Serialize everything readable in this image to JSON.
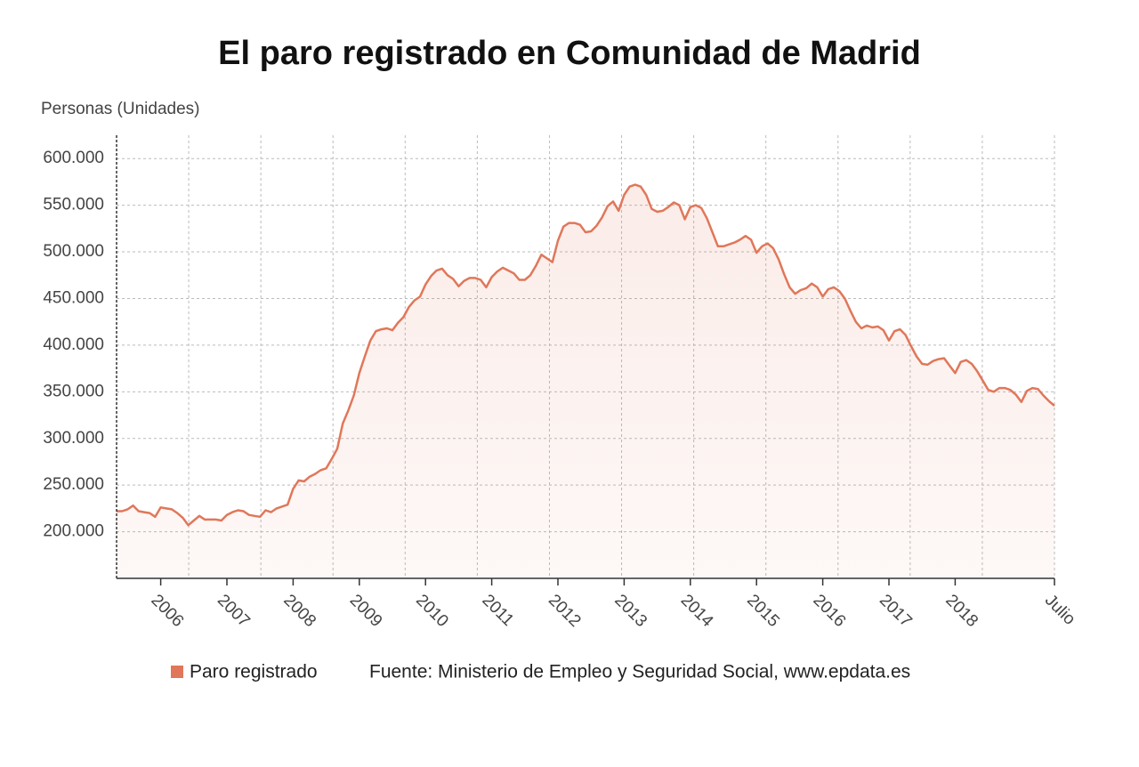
{
  "chart_data": {
    "type": "area-line",
    "title": "El paro registrado en Comunidad de Madrid",
    "y_label": "Personas (Unidades)",
    "source": "Fuente: Ministerio de Empleo y Seguridad Social, www.epdata.es",
    "categories": [
      null,
      null,
      null,
      null,
      null,
      null,
      null,
      null,
      "2006",
      null,
      null,
      null,
      null,
      null,
      null,
      null,
      null,
      null,
      null,
      null,
      "2007",
      null,
      null,
      null,
      null,
      null,
      null,
      null,
      null,
      null,
      null,
      null,
      "2008",
      null,
      null,
      null,
      null,
      null,
      null,
      null,
      null,
      null,
      null,
      null,
      "2009",
      null,
      null,
      null,
      null,
      null,
      null,
      null,
      null,
      null,
      null,
      null,
      "2010",
      null,
      null,
      null,
      null,
      null,
      null,
      null,
      null,
      null,
      null,
      null,
      "2011",
      null,
      null,
      null,
      null,
      null,
      null,
      null,
      null,
      null,
      null,
      null,
      "2012",
      null,
      null,
      null,
      null,
      null,
      null,
      null,
      null,
      null,
      null,
      null,
      "2013",
      null,
      null,
      null,
      null,
      null,
      null,
      null,
      null,
      null,
      null,
      null,
      "2014",
      null,
      null,
      null,
      null,
      null,
      null,
      null,
      null,
      null,
      null,
      null,
      "2015",
      null,
      null,
      null,
      null,
      null,
      null,
      null,
      null,
      null,
      null,
      null,
      "2016",
      null,
      null,
      null,
      null,
      null,
      null,
      null,
      null,
      null,
      null,
      null,
      "2017",
      null,
      null,
      null,
      null,
      null,
      null,
      null,
      null,
      null,
      null,
      null,
      "2018",
      null,
      null,
      null,
      null,
      null,
      null,
      null,
      null,
      null,
      null,
      null,
      null,
      null,
      null,
      null,
      null,
      null,
      "Julio"
    ],
    "series": [
      {
        "name": "Paro registrado",
        "color": "#e0775a",
        "values": [
          222000,
          222000,
          224000,
          228000,
          222000,
          221000,
          220000,
          216000,
          226000,
          225000,
          224000,
          220000,
          215000,
          207000,
          212000,
          217000,
          213000,
          213000,
          213000,
          212000,
          218000,
          221000,
          223000,
          222000,
          218000,
          217000,
          216000,
          223000,
          221000,
          225000,
          227000,
          229000,
          246000,
          255000,
          254000,
          259000,
          262000,
          266000,
          268000,
          278000,
          289000,
          316000,
          330000,
          346000,
          370000,
          388000,
          405000,
          415000,
          417000,
          418000,
          416000,
          424000,
          430000,
          441000,
          448000,
          452000,
          465000,
          474000,
          480000,
          482000,
          475000,
          471000,
          463000,
          469000,
          472000,
          472000,
          470000,
          462000,
          473000,
          479000,
          483000,
          480000,
          477000,
          470000,
          470000,
          475000,
          485000,
          497000,
          493000,
          489000,
          512000,
          527000,
          531000,
          531000,
          529000,
          521000,
          522000,
          528000,
          537000,
          549000,
          554000,
          544000,
          561000,
          570000,
          572000,
          570000,
          561000,
          546000,
          543000,
          544000,
          548000,
          553000,
          550000,
          535000,
          548000,
          550000,
          547000,
          536000,
          521000,
          506000,
          506000,
          508000,
          510000,
          513000,
          517000,
          513000,
          499000,
          506000,
          509000,
          504000,
          492000,
          476000,
          462000,
          455000,
          459000,
          461000,
          466000,
          462000,
          452000,
          460000,
          462000,
          458000,
          450000,
          437000,
          425000,
          418000,
          421000,
          419000,
          420000,
          416000,
          405000,
          415000,
          417000,
          411000,
          399000,
          388000,
          380000,
          379000,
          383000,
          385000,
          386000,
          378000,
          370000,
          382000,
          384000,
          380000,
          372000,
          362000,
          352000,
          350000,
          354000,
          354000,
          352000,
          347000,
          339000,
          351000,
          354000,
          353000,
          346000,
          340000,
          335000
        ]
      }
    ],
    "ylim": [
      150000,
      625000
    ],
    "yticks": [
      {
        "value": 200000,
        "label": "200.000"
      },
      {
        "value": 250000,
        "label": "250.000"
      },
      {
        "value": 300000,
        "label": "300.000"
      },
      {
        "value": 350000,
        "label": "350.000"
      },
      {
        "value": 400000,
        "label": "400.000"
      },
      {
        "value": 450000,
        "label": "450.000"
      },
      {
        "value": 500000,
        "label": "500.000"
      },
      {
        "value": 550000,
        "label": "550.000"
      },
      {
        "value": 600000,
        "label": "600.000"
      }
    ],
    "grid": true
  }
}
